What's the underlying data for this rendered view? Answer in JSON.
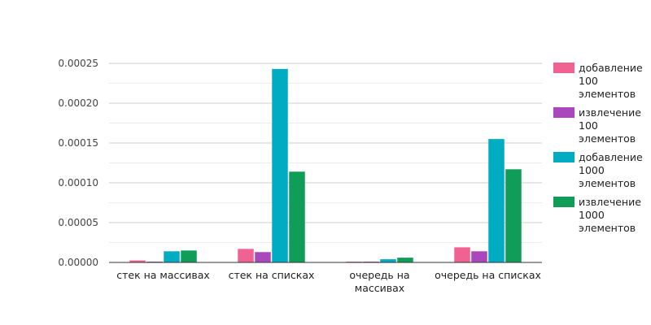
{
  "chart_data": {
    "type": "bar",
    "categories": [
      "стек на массивах",
      "стек на списках",
      "очередь на массивах",
      "очередь на списках"
    ],
    "series": [
      {
        "name": "добавление 100 элементов",
        "color": "#f06292",
        "values": [
          2.5e-06,
          1.7e-05,
          1e-06,
          1.9e-05
        ]
      },
      {
        "name": "извлечение 100 элементов",
        "color": "#ab47bc",
        "values": [
          1e-06,
          1.3e-05,
          1e-06,
          1.4e-05
        ]
      },
      {
        "name": "добавление 1000 элементов",
        "color": "#00acc1",
        "values": [
          1.4e-05,
          0.000243,
          4e-06,
          0.000155
        ]
      },
      {
        "name": "извлечение 1000 элементов",
        "color": "#0f9d58",
        "values": [
          1.5e-05,
          0.000114,
          6e-06,
          0.000117
        ]
      }
    ],
    "yticks": [
      "0.00000",
      "0.00005",
      "0.00010",
      "0.00015",
      "0.00020",
      "0.00025"
    ],
    "ylim": [
      0,
      0.00025
    ],
    "grid": true,
    "legend_position": "right",
    "title": "",
    "xlabel": "",
    "ylabel": ""
  }
}
